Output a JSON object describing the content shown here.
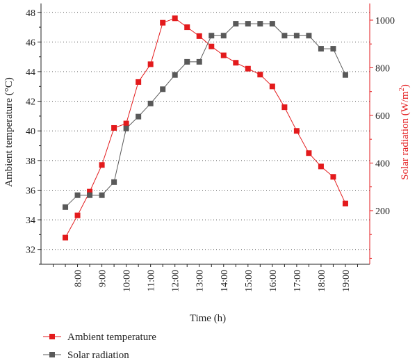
{
  "chart_data": {
    "type": "line",
    "xlabel": "Time (h)",
    "ylabel_left": "Ambient temperature (°C)",
    "ylabel_right_base": "Solar radiation (W/m",
    "ylabel_right_sup": "2",
    "ylabel_right_tail": ")",
    "x_ticks": [
      "8:00",
      "9:00",
      "10:00",
      "11:00",
      "12:00",
      "13:00",
      "14:00",
      "15:00",
      "16:00",
      "17:00",
      "18:00",
      "19:00"
    ],
    "xlim": [
      6.5,
      20.0
    ],
    "ylim_left": [
      31,
      48.6
    ],
    "ylim_right": [
      -25,
      1070
    ],
    "y_ticks_left": [
      "32",
      "34",
      "36",
      "38",
      "40",
      "42",
      "44",
      "46",
      "48"
    ],
    "y_ticks_right": [
      "200",
      "400",
      "600",
      "800",
      "1000"
    ],
    "grid": true,
    "legend_position": "bottom-left",
    "series": [
      {
        "name": "Ambient temperature",
        "axis": "left",
        "color": "#e31a1c",
        "x": [
          7.5,
          8.0,
          8.5,
          9.0,
          9.5,
          10.0,
          10.5,
          11.0,
          11.5,
          12.0,
          12.5,
          13.0,
          13.5,
          14.0,
          14.5,
          15.0,
          15.5,
          16.0,
          16.5,
          17.0,
          17.5,
          18.0,
          18.5,
          19.0
        ],
        "y": [
          32.8,
          34.3,
          35.9,
          37.7,
          40.2,
          40.5,
          43.3,
          44.5,
          47.3,
          47.6,
          47.0,
          46.4,
          45.7,
          45.1,
          44.6,
          44.2,
          43.8,
          43.0,
          41.6,
          40.0,
          38.5,
          37.6,
          36.9,
          35.1
        ]
      },
      {
        "name": "Solar radiation",
        "axis": "right",
        "color": "#595959",
        "x": [
          7.5,
          8.0,
          8.5,
          9.0,
          9.5,
          10.0,
          10.5,
          11.0,
          11.5,
          12.0,
          12.5,
          13.0,
          13.5,
          14.0,
          14.5,
          15.0,
          15.5,
          16.0,
          16.5,
          17.0,
          17.5,
          18.0,
          18.5,
          19.0
        ],
        "y": [
          215,
          265,
          265,
          265,
          320,
          545,
          595,
          650,
          710,
          770,
          825,
          825,
          935,
          935,
          985,
          985,
          985,
          985,
          935,
          935,
          935,
          880,
          880,
          770
        ]
      }
    ]
  }
}
